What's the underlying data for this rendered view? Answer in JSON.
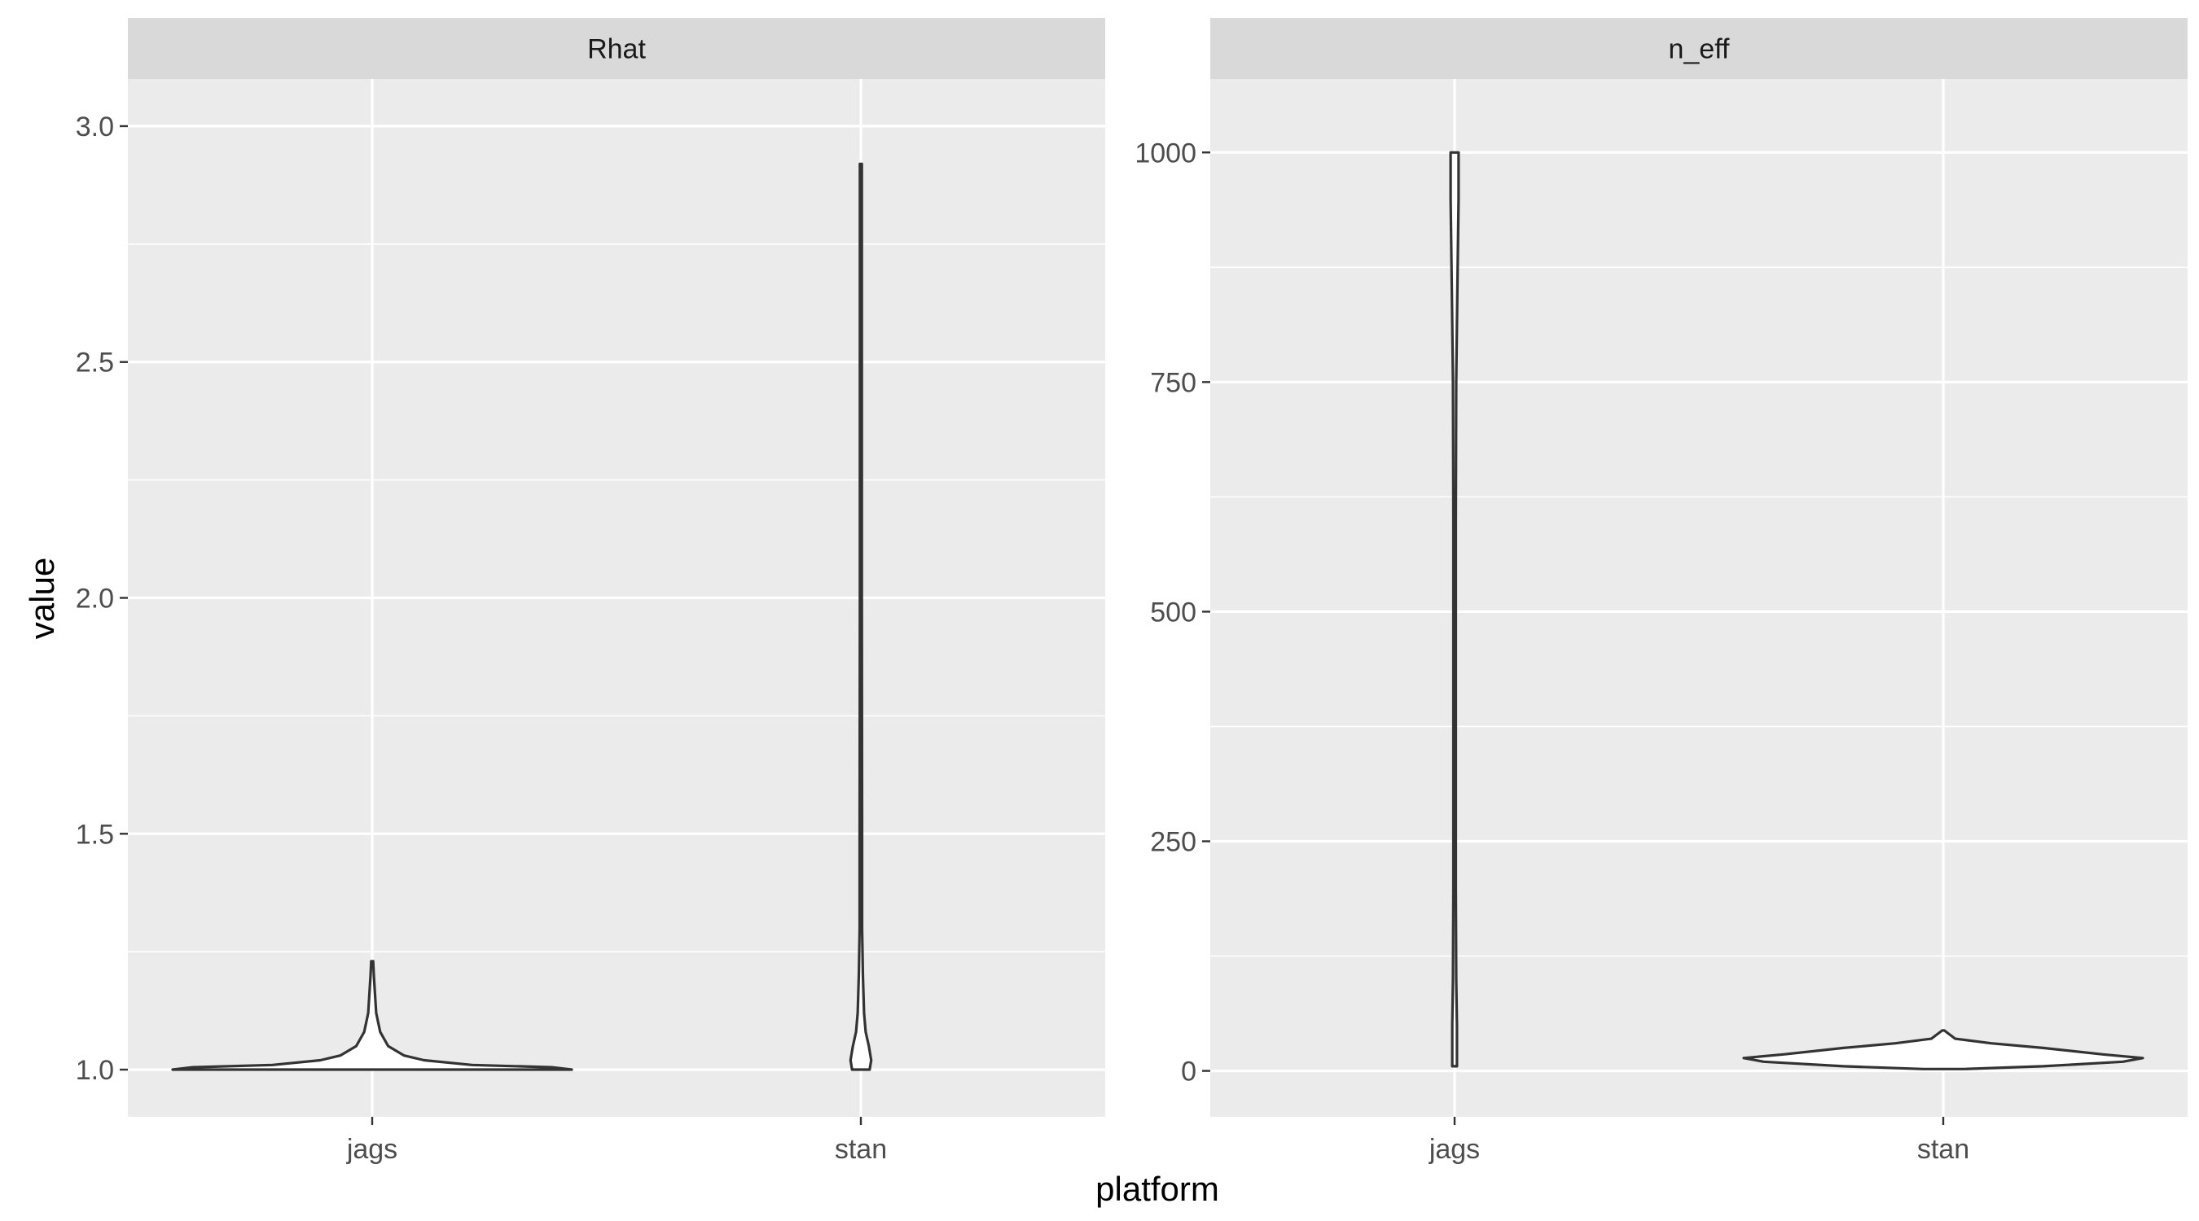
{
  "chart_data": {
    "type": "violin",
    "xlabel": "platform",
    "ylabel": "value",
    "categories": [
      "jags",
      "stan"
    ],
    "facets": [
      {
        "strip": "Rhat",
        "ylim": [
          0.9,
          3.1
        ],
        "yticks": [
          1.0,
          1.5,
          2.0,
          2.5,
          3.0
        ],
        "ytick_labels": [
          "1.0",
          "1.5",
          "2.0",
          "2.5",
          "3.0"
        ],
        "series": [
          {
            "category": "jags",
            "profile": [
              [
                1.0,
                0.5
              ],
              [
                1.005,
                0.45
              ],
              [
                1.01,
                0.25
              ],
              [
                1.02,
                0.13
              ],
              [
                1.03,
                0.08
              ],
              [
                1.05,
                0.04
              ],
              [
                1.08,
                0.02
              ],
              [
                1.12,
                0.01
              ],
              [
                1.2,
                0.004
              ],
              [
                1.23,
                0.0
              ]
            ]
          },
          {
            "category": "stan",
            "profile": [
              [
                1.0,
                0.022
              ],
              [
                1.02,
                0.026
              ],
              [
                1.05,
                0.02
              ],
              [
                1.08,
                0.012
              ],
              [
                1.12,
                0.008
              ],
              [
                1.2,
                0.005
              ],
              [
                1.3,
                0.003
              ],
              [
                1.5,
                0.003
              ],
              [
                2.0,
                0.002
              ],
              [
                2.5,
                0.002
              ],
              [
                2.92,
                0.0
              ]
            ]
          }
        ]
      },
      {
        "strip": "n_eff",
        "ylim": [
          -50,
          1080
        ],
        "yticks": [
          0,
          250,
          500,
          750,
          1000
        ],
        "ytick_labels": [
          "0",
          "250",
          "500",
          "750",
          "1000"
        ],
        "series": [
          {
            "category": "jags",
            "profile": [
              [
                5,
                0.006
              ],
              [
                50,
                0.006
              ],
              [
                100,
                0.004
              ],
              [
                200,
                0.003
              ],
              [
                400,
                0.003
              ],
              [
                600,
                0.003
              ],
              [
                750,
                0.004
              ],
              [
                850,
                0.007
              ],
              [
                950,
                0.01
              ],
              [
                990,
                0.01
              ],
              [
                1000,
                0.01
              ]
            ]
          },
          {
            "category": "stan",
            "profile": [
              [
                2,
                0.05
              ],
              [
                5,
                0.25
              ],
              [
                10,
                0.45
              ],
              [
                14,
                0.5
              ],
              [
                18,
                0.4
              ],
              [
                25,
                0.25
              ],
              [
                30,
                0.12
              ],
              [
                35,
                0.03
              ],
              [
                40,
                0.015
              ],
              [
                44,
                0.0
              ]
            ]
          }
        ]
      }
    ]
  }
}
